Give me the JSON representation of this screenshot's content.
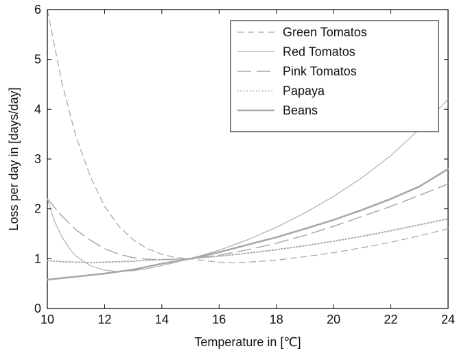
{
  "chart_data": {
    "type": "line",
    "xlabel": "Temperature in [℃]",
    "ylabel": "Loss per day in [days/day]",
    "xlim": [
      10,
      24
    ],
    "ylim": [
      0,
      6
    ],
    "xticks": [
      10,
      12,
      14,
      16,
      18,
      20,
      22,
      24
    ],
    "yticks": [
      0,
      1,
      2,
      3,
      4,
      5,
      6
    ],
    "grid": false,
    "legend_position": "top-right",
    "series": [
      {
        "name": "Green Tomatos",
        "style": "dashed",
        "color": "#a8a8a8",
        "x": [
          10,
          10.5,
          11,
          11.5,
          12,
          12.5,
          13,
          13.5,
          14,
          14.5,
          15,
          15.5,
          16,
          16.5,
          17,
          17.5,
          18,
          19,
          20,
          21,
          22,
          23,
          24
        ],
        "y": [
          6.0,
          4.55,
          3.45,
          2.65,
          2.05,
          1.65,
          1.38,
          1.2,
          1.09,
          1.02,
          1.0,
          0.96,
          0.93,
          0.92,
          0.93,
          0.95,
          0.97,
          1.04,
          1.12,
          1.22,
          1.33,
          1.46,
          1.6
        ]
      },
      {
        "name": "Red Tomatos",
        "style": "solid-thin",
        "color": "#a8a8a8",
        "x": [
          10,
          10.25,
          10.5,
          10.75,
          11,
          11.5,
          12,
          12.5,
          13,
          13.5,
          14,
          14.5,
          15,
          16,
          17,
          18,
          19,
          20,
          21,
          22,
          23,
          24
        ],
        "y": [
          2.2,
          1.75,
          1.45,
          1.22,
          1.05,
          0.86,
          0.77,
          0.74,
          0.76,
          0.8,
          0.86,
          0.93,
          1.0,
          1.17,
          1.38,
          1.63,
          1.92,
          2.25,
          2.63,
          3.07,
          3.6,
          4.2
        ]
      },
      {
        "name": "Pink Tomatos",
        "style": "long-dash",
        "color": "#a8a8a8",
        "x": [
          10,
          10.5,
          11,
          11.5,
          12,
          12.5,
          13,
          13.5,
          14,
          14.5,
          15,
          16,
          17,
          18,
          19,
          20,
          21,
          22,
          23,
          24
        ],
        "y": [
          2.2,
          1.86,
          1.58,
          1.37,
          1.2,
          1.09,
          1.02,
          0.99,
          0.98,
          0.99,
          1.0,
          1.07,
          1.18,
          1.31,
          1.47,
          1.65,
          1.85,
          2.05,
          2.27,
          2.5
        ]
      },
      {
        "name": "Papaya",
        "style": "dotted",
        "color": "#a8a8a8",
        "x": [
          10,
          10.5,
          11,
          11.5,
          12,
          12.5,
          13,
          13.5,
          14,
          14.5,
          15,
          16,
          17,
          18,
          19,
          20,
          21,
          22,
          23,
          24
        ],
        "y": [
          0.96,
          0.94,
          0.93,
          0.92,
          0.93,
          0.94,
          0.95,
          0.97,
          0.98,
          0.99,
          1.0,
          1.05,
          1.11,
          1.18,
          1.26,
          1.35,
          1.45,
          1.56,
          1.68,
          1.8
        ]
      },
      {
        "name": "Beans",
        "style": "solid-thick",
        "color": "#a8a8a8",
        "x": [
          10,
          11,
          12,
          12.5,
          13,
          13.5,
          14,
          14.5,
          15,
          16,
          17,
          18,
          19,
          20,
          21,
          22,
          23,
          24
        ],
        "y": [
          0.58,
          0.64,
          0.7,
          0.74,
          0.78,
          0.84,
          0.9,
          0.95,
          1.0,
          1.13,
          1.28,
          1.43,
          1.6,
          1.78,
          1.98,
          2.2,
          2.45,
          2.8
        ]
      }
    ]
  }
}
